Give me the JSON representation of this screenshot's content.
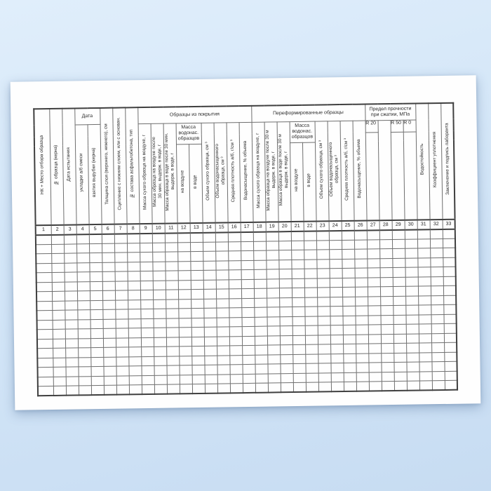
{
  "table": {
    "groups": {
      "date": "Дата",
      "coating": "Образцы из покрытия",
      "reformed": "Переформированные образцы",
      "strength": "Предел прочности\nпри сжатии, МПа",
      "mass_saturated": "Масса\nводонас.\nобразцов"
    },
    "columns": {
      "c1": "НК + Место отбора образца",
      "c2": "№ образца (керна)",
      "c3": "Дата испытания",
      "c4": "укладки а/б смеси",
      "c5": "взятия вырубки (керна)",
      "c6": "Толщина слоя (верхнего, нижнего), см",
      "c7": "Сцепление с нижним слоем, или с основан.",
      "c8": "№ состава асфальтобетона, тип",
      "c9": "Масса сухого образца на воздухе, г",
      "c10": "Масса образца на воздухе после\n30 мин. выдерж. в воде, г",
      "c11": "Масса образца в воде после 30 мин.\nвыдерж. в воде, г",
      "c12": "на воздухе",
      "c13": "в воде",
      "c14": "Объем сухого образца, см ³",
      "c15": "Объем водонасыщенного\nобразца, см ³",
      "c16": "Средняя плотность а/б, г/см ³",
      "c17": "Водонасыщение, % объема",
      "c18": "Масса сухого образца на воздухе, г",
      "c19": "Масса образца на воздухе после 30 м\nвыдерж. в воде, г",
      "c20": "Масса образца в воде после 30 м\nвыдерж. в воде, г",
      "c21": "на воздухе",
      "c22": "в воде",
      "c23": "Объем сухого образца, см ³",
      "c24": "Объем водонасыщенного\nобразца, см ³",
      "c25": "Средняя плотность а/б, г/см ³",
      "c26": "Водонасыщение, % объема",
      "c27": "R 20",
      "c29": "R 50",
      "c30": "R 0",
      "c31": "Водостойкость",
      "c32": "Коэффициент уплотнения",
      "c33": "Заключение и подпись лаборанта"
    },
    "column_numbers": [
      "1",
      "2",
      "3",
      "4",
      "5",
      "6",
      "7",
      "8",
      "9",
      "10",
      "11",
      "12",
      "13",
      "14",
      "15",
      "16",
      "17",
      "18",
      "19",
      "20",
      "21",
      "22",
      "23",
      "24",
      "25",
      "26",
      "27",
      "28",
      "29",
      "30",
      "31",
      "32",
      "33"
    ],
    "empty_row_count": 17
  }
}
